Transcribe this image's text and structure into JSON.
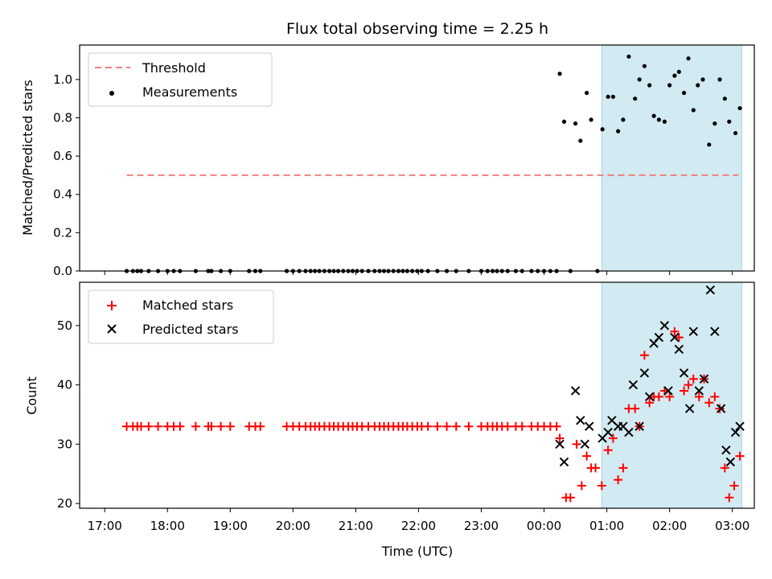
{
  "chart_data": {
    "title": "Flux total observing time = 2.25 h",
    "xlabel": "Time (UTC)",
    "x_unit": "hours since 17:00 UTC",
    "xlim": [
      -0.4,
      10.35
    ],
    "x_ticks": [
      0,
      1,
      2,
      3,
      4,
      5,
      6,
      7,
      8,
      9,
      10
    ],
    "x_tick_labels": [
      "17:00",
      "18:00",
      "19:00",
      "20:00",
      "21:00",
      "22:00",
      "23:00",
      "00:00",
      "01:00",
      "02:00",
      "03:00"
    ],
    "shaded_span": {
      "x0": 7.92,
      "x1": 10.15,
      "color": "#add8e6"
    },
    "top": {
      "type": "scatter",
      "ylabel": "Matched/Predicted stars",
      "ylim": [
        0,
        1.18
      ],
      "y_ticks": [
        0.0,
        0.2,
        0.4,
        0.6,
        0.8,
        1.0
      ],
      "y_tick_labels": [
        "0.0",
        "0.2",
        "0.4",
        "0.6",
        "0.8",
        "1.0"
      ],
      "threshold": {
        "name": "Threshold",
        "value": 0.5,
        "x0": 0.35,
        "x1": 10.1,
        "color": "#f08080"
      },
      "series": [
        {
          "name": "Measurements",
          "color": "#000000",
          "points": [
            [
              0.35,
              0
            ],
            [
              0.45,
              0
            ],
            [
              0.52,
              0
            ],
            [
              0.58,
              0
            ],
            [
              0.7,
              0
            ],
            [
              0.85,
              0
            ],
            [
              1.0,
              0
            ],
            [
              1.1,
              0
            ],
            [
              1.2,
              0
            ],
            [
              1.45,
              0
            ],
            [
              1.65,
              0
            ],
            [
              1.7,
              0
            ],
            [
              1.85,
              0
            ],
            [
              2.0,
              0
            ],
            [
              2.3,
              0
            ],
            [
              2.4,
              0
            ],
            [
              2.48,
              0
            ],
            [
              2.9,
              0
            ],
            [
              3.0,
              0
            ],
            [
              3.1,
              0
            ],
            [
              3.2,
              0
            ],
            [
              3.28,
              0
            ],
            [
              3.35,
              0
            ],
            [
              3.42,
              0
            ],
            [
              3.5,
              0
            ],
            [
              3.58,
              0
            ],
            [
              3.65,
              0
            ],
            [
              3.72,
              0
            ],
            [
              3.8,
              0
            ],
            [
              3.88,
              0
            ],
            [
              3.95,
              0
            ],
            [
              4.02,
              0
            ],
            [
              4.1,
              0
            ],
            [
              4.2,
              0
            ],
            [
              4.3,
              0
            ],
            [
              4.38,
              0
            ],
            [
              4.45,
              0
            ],
            [
              4.52,
              0
            ],
            [
              4.6,
              0
            ],
            [
              4.68,
              0
            ],
            [
              4.75,
              0
            ],
            [
              4.82,
              0
            ],
            [
              4.9,
              0
            ],
            [
              4.98,
              0
            ],
            [
              5.05,
              0
            ],
            [
              5.15,
              0
            ],
            [
              5.3,
              0
            ],
            [
              5.45,
              0
            ],
            [
              5.6,
              0
            ],
            [
              5.8,
              0
            ],
            [
              6.0,
              0
            ],
            [
              6.1,
              0
            ],
            [
              6.18,
              0
            ],
            [
              6.25,
              0
            ],
            [
              6.33,
              0
            ],
            [
              6.42,
              0
            ],
            [
              6.55,
              0
            ],
            [
              6.65,
              0
            ],
            [
              6.8,
              0
            ],
            [
              6.9,
              0
            ],
            [
              7.0,
              0
            ],
            [
              7.1,
              0
            ],
            [
              7.2,
              0
            ],
            [
              7.42,
              0
            ],
            [
              7.85,
              0
            ],
            [
              7.25,
              1.03
            ],
            [
              7.32,
              0.78
            ],
            [
              7.5,
              0.77
            ],
            [
              7.58,
              0.68
            ],
            [
              7.68,
              0.93
            ],
            [
              7.75,
              0.79
            ],
            [
              7.93,
              0.74
            ],
            [
              8.02,
              0.91
            ],
            [
              8.1,
              0.91
            ],
            [
              8.18,
              0.73
            ],
            [
              8.26,
              0.79
            ],
            [
              8.35,
              1.12
            ],
            [
              8.45,
              0.9
            ],
            [
              8.52,
              1.0
            ],
            [
              8.6,
              1.07
            ],
            [
              8.68,
              0.97
            ],
            [
              8.75,
              0.81
            ],
            [
              8.83,
              0.79
            ],
            [
              8.92,
              0.78
            ],
            [
              9.0,
              0.97
            ],
            [
              9.08,
              1.02
            ],
            [
              9.15,
              1.04
            ],
            [
              9.23,
              0.93
            ],
            [
              9.3,
              1.11
            ],
            [
              9.38,
              0.84
            ],
            [
              9.45,
              0.97
            ],
            [
              9.53,
              1.0
            ],
            [
              9.63,
              0.66
            ],
            [
              9.72,
              0.77
            ],
            [
              9.8,
              1.0
            ],
            [
              9.88,
              0.9
            ],
            [
              9.95,
              0.78
            ],
            [
              10.05,
              0.72
            ],
            [
              10.12,
              0.85
            ]
          ]
        }
      ],
      "legend": {
        "location": "upper-left",
        "entries": [
          "Threshold",
          "Measurements"
        ]
      }
    },
    "bottom": {
      "type": "scatter",
      "ylabel": "Count",
      "ylim": [
        19.2,
        57.3
      ],
      "y_ticks": [
        20,
        30,
        40,
        50
      ],
      "y_tick_labels": [
        "20",
        "30",
        "40",
        "50"
      ],
      "series": [
        {
          "name": "Matched stars",
          "marker": "+",
          "color": "#ff0000",
          "points": [
            [
              0.35,
              33
            ],
            [
              0.45,
              33
            ],
            [
              0.52,
              33
            ],
            [
              0.58,
              33
            ],
            [
              0.7,
              33
            ],
            [
              0.85,
              33
            ],
            [
              1.0,
              33
            ],
            [
              1.1,
              33
            ],
            [
              1.2,
              33
            ],
            [
              1.45,
              33
            ],
            [
              1.65,
              33
            ],
            [
              1.7,
              33
            ],
            [
              1.85,
              33
            ],
            [
              2.0,
              33
            ],
            [
              2.3,
              33
            ],
            [
              2.4,
              33
            ],
            [
              2.48,
              33
            ],
            [
              2.9,
              33
            ],
            [
              3.0,
              33
            ],
            [
              3.1,
              33
            ],
            [
              3.2,
              33
            ],
            [
              3.28,
              33
            ],
            [
              3.35,
              33
            ],
            [
              3.42,
              33
            ],
            [
              3.5,
              33
            ],
            [
              3.58,
              33
            ],
            [
              3.65,
              33
            ],
            [
              3.72,
              33
            ],
            [
              3.8,
              33
            ],
            [
              3.88,
              33
            ],
            [
              3.95,
              33
            ],
            [
              4.02,
              33
            ],
            [
              4.1,
              33
            ],
            [
              4.2,
              33
            ],
            [
              4.3,
              33
            ],
            [
              4.38,
              33
            ],
            [
              4.45,
              33
            ],
            [
              4.52,
              33
            ],
            [
              4.6,
              33
            ],
            [
              4.68,
              33
            ],
            [
              4.75,
              33
            ],
            [
              4.82,
              33
            ],
            [
              4.9,
              33
            ],
            [
              4.98,
              33
            ],
            [
              5.05,
              33
            ],
            [
              5.15,
              33
            ],
            [
              5.3,
              33
            ],
            [
              5.45,
              33
            ],
            [
              5.6,
              33
            ],
            [
              5.8,
              33
            ],
            [
              6.0,
              33
            ],
            [
              6.1,
              33
            ],
            [
              6.18,
              33
            ],
            [
              6.25,
              33
            ],
            [
              6.33,
              33
            ],
            [
              6.42,
              33
            ],
            [
              6.55,
              33
            ],
            [
              6.65,
              33
            ],
            [
              6.8,
              33
            ],
            [
              6.9,
              33
            ],
            [
              7.0,
              33
            ],
            [
              7.1,
              33
            ],
            [
              7.2,
              33
            ],
            [
              7.25,
              31
            ],
            [
              7.35,
              21
            ],
            [
              7.42,
              21
            ],
            [
              7.52,
              30
            ],
            [
              7.6,
              23
            ],
            [
              7.68,
              28
            ],
            [
              7.75,
              26
            ],
            [
              7.82,
              26
            ],
            [
              7.92,
              23
            ],
            [
              8.02,
              29
            ],
            [
              8.1,
              31
            ],
            [
              8.18,
              24
            ],
            [
              8.26,
              26
            ],
            [
              8.35,
              36
            ],
            [
              8.45,
              36
            ],
            [
              8.52,
              33
            ],
            [
              8.6,
              45
            ],
            [
              8.68,
              37
            ],
            [
              8.75,
              38
            ],
            [
              8.83,
              38
            ],
            [
              8.92,
              39
            ],
            [
              9.0,
              38
            ],
            [
              9.08,
              49
            ],
            [
              9.15,
              48
            ],
            [
              9.23,
              39
            ],
            [
              9.3,
              40
            ],
            [
              9.38,
              41
            ],
            [
              9.47,
              38
            ],
            [
              9.55,
              41
            ],
            [
              9.63,
              37
            ],
            [
              9.72,
              38
            ],
            [
              9.8,
              36
            ],
            [
              9.88,
              26
            ],
            [
              9.95,
              21
            ],
            [
              10.03,
              23
            ],
            [
              10.12,
              28
            ]
          ]
        },
        {
          "name": "Predicted stars",
          "marker": "x",
          "color": "#000000",
          "points": [
            [
              7.25,
              30
            ],
            [
              7.32,
              27
            ],
            [
              7.5,
              39
            ],
            [
              7.58,
              34
            ],
            [
              7.65,
              30
            ],
            [
              7.72,
              33
            ],
            [
              7.93,
              31
            ],
            [
              8.02,
              32
            ],
            [
              8.08,
              34
            ],
            [
              8.18,
              33
            ],
            [
              8.26,
              33
            ],
            [
              8.35,
              32
            ],
            [
              8.42,
              40
            ],
            [
              8.52,
              33
            ],
            [
              8.6,
              42
            ],
            [
              8.68,
              38
            ],
            [
              8.75,
              47
            ],
            [
              8.83,
              48
            ],
            [
              8.92,
              50
            ],
            [
              8.98,
              39
            ],
            [
              9.08,
              48
            ],
            [
              9.15,
              46
            ],
            [
              9.23,
              42
            ],
            [
              9.32,
              36
            ],
            [
              9.38,
              49
            ],
            [
              9.47,
              39
            ],
            [
              9.55,
              41
            ],
            [
              9.65,
              56
            ],
            [
              9.72,
              49
            ],
            [
              9.82,
              36
            ],
            [
              9.9,
              29
            ],
            [
              9.97,
              27
            ],
            [
              10.05,
              32
            ],
            [
              10.12,
              33
            ]
          ]
        }
      ],
      "legend": {
        "location": "upper-left",
        "entries": [
          "Matched stars",
          "Predicted stars"
        ]
      }
    }
  }
}
